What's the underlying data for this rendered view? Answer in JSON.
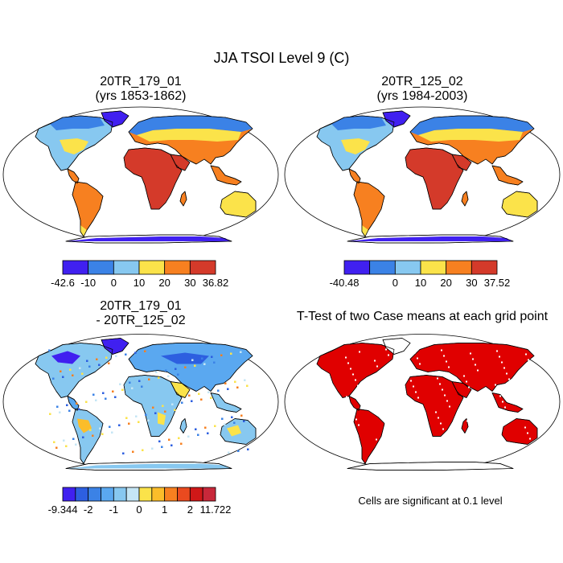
{
  "figure_title": "JJA TSOI Level 9 (C)",
  "panels": [
    {
      "title_line1": "20TR_179_01",
      "title_line2": "(yrs 1853-1862)"
    },
    {
      "title_line1": "20TR_125_02",
      "title_line2": "(yrs 1984-2003)"
    },
    {
      "title_line1": "20TR_179_01",
      "title_line2": "- 20TR_125_02"
    },
    {
      "title_line1": "T-Test of two Case means at each grid point",
      "title_line2": ""
    }
  ],
  "note": "Cells are significant at 0.1 level",
  "chart_data": [
    {
      "type": "map",
      "title": "20TR_179_01 (yrs 1853-1862)",
      "colorbar": {
        "colors": [
          "#4020f0",
          "#3b82e6",
          "#87c8f0",
          "#fbe34a",
          "#f78020",
          "#d43a2a"
        ],
        "labels": [
          "-42.6",
          "-10",
          "0",
          "10",
          "20",
          "30",
          "36.82"
        ],
        "label_positions": [
          0,
          1,
          2,
          3,
          4,
          5,
          6
        ]
      }
    },
    {
      "type": "map",
      "title": "20TR_125_02 (yrs 1984-2003)",
      "colorbar": {
        "colors": [
          "#4020f0",
          "#3b82e6",
          "#87c8f0",
          "#fbe34a",
          "#f78020",
          "#d43a2a"
        ],
        "labels": [
          "-40.48",
          "0",
          "10",
          "20",
          "30",
          "37.52"
        ],
        "label_positions": [
          0,
          2,
          3,
          4,
          5,
          6
        ]
      }
    },
    {
      "type": "map",
      "title": "20TR_179_01 - 20TR_125_02",
      "colorbar": {
        "colors": [
          "#4020f0",
          "#2d5fe0",
          "#3b82e6",
          "#5aa8f0",
          "#87c8f0",
          "#c5e6f5",
          "#fbe34a",
          "#fbbd2a",
          "#f78020",
          "#ea4a1f",
          "#d01818",
          "#c8283a"
        ],
        "labels": [
          "-9.344",
          "-2",
          "-1",
          "0",
          "1",
          "2",
          "11.722"
        ],
        "label_positions": [
          0,
          2,
          4,
          6,
          8,
          10,
          12
        ]
      }
    },
    {
      "type": "map",
      "title": "T-Test of two Case means at each grid point",
      "significance_color": "#e00000"
    }
  ]
}
